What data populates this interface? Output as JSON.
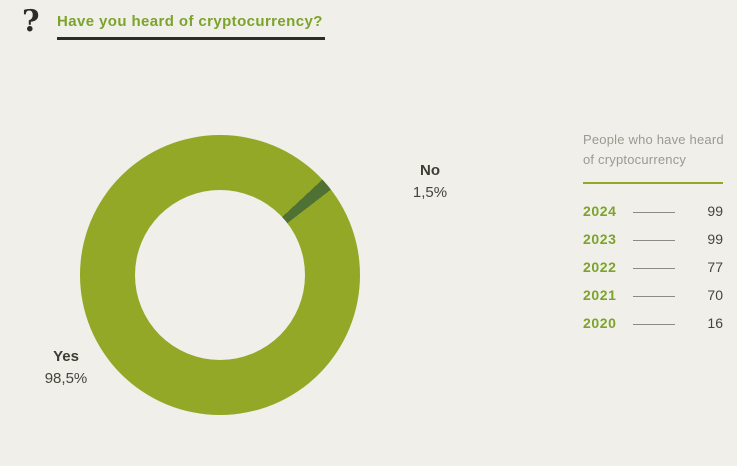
{
  "theme": {
    "background": "#f0efea",
    "accent_green": "#93a826",
    "dark_green_slice": "#4f7133",
    "title_green": "#7ca32b",
    "dark_ink": "#2e2d24",
    "muted_gray": "#9b9a90",
    "value_gray": "#45453b"
  },
  "header": {
    "icon": "?",
    "title": "Have you heard of cryptocurrency?"
  },
  "chart_data": [
    {
      "type": "pie",
      "donut": true,
      "title": "Have you heard of cryptocurrency?",
      "legend_position": "labels-on-chart",
      "rotation_deg": 47,
      "slices": [
        {
          "label": "Yes",
          "value": 98.5,
          "display_value": "98,5%",
          "color": "#93a826"
        },
        {
          "label": "No",
          "value": 1.5,
          "display_value": "1,5%",
          "color": "#4f7133"
        }
      ]
    },
    {
      "type": "table",
      "title": "People who have heard of cryptocurrency",
      "categories": [
        "2024",
        "2023",
        "2022",
        "2021",
        "2020"
      ],
      "values": [
        99,
        99,
        77,
        70,
        16
      ]
    }
  ]
}
